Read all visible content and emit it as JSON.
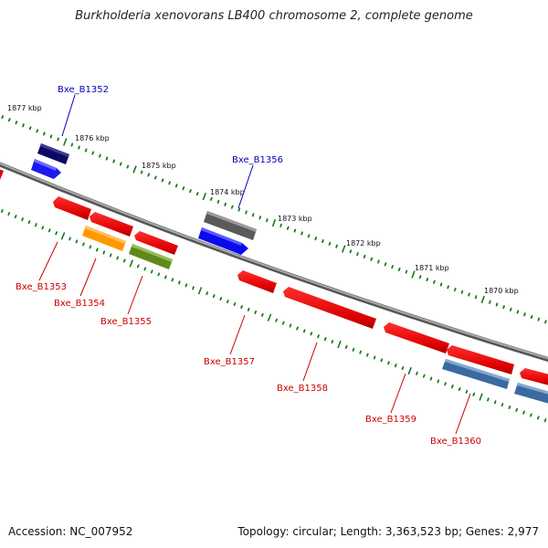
{
  "title": "Burkholderia xenovorans LB400 chromosome 2, complete genome",
  "footer": {
    "accession": "Accession: NC_007952",
    "summary": "Topology: circular; Length: 3,363,523 bp; Genes: 2,977"
  },
  "colors": {
    "backbone": "#7a7a7a",
    "tick": "#1a7a1a",
    "gene_default": "#ff0000",
    "label_top": "#0000bb",
    "label_bottom": "#cc0000"
  },
  "kbp_labels": [
    "1877 kbp",
    "1876 kbp",
    "1875 kbp",
    "1874 kbp",
    "1873 kbp",
    "1872 kbp",
    "1871 kbp",
    "1870 kbp"
  ],
  "gene_labels_top": [
    "Bxe_B1352",
    "Bxe_B1356"
  ],
  "gene_labels_bottom": [
    "Bxe_B1353",
    "Bxe_B1354",
    "Bxe_B1355",
    "Bxe_B1357",
    "Bxe_B1358",
    "Bxe_B1359",
    "Bxe_B1360"
  ]
}
